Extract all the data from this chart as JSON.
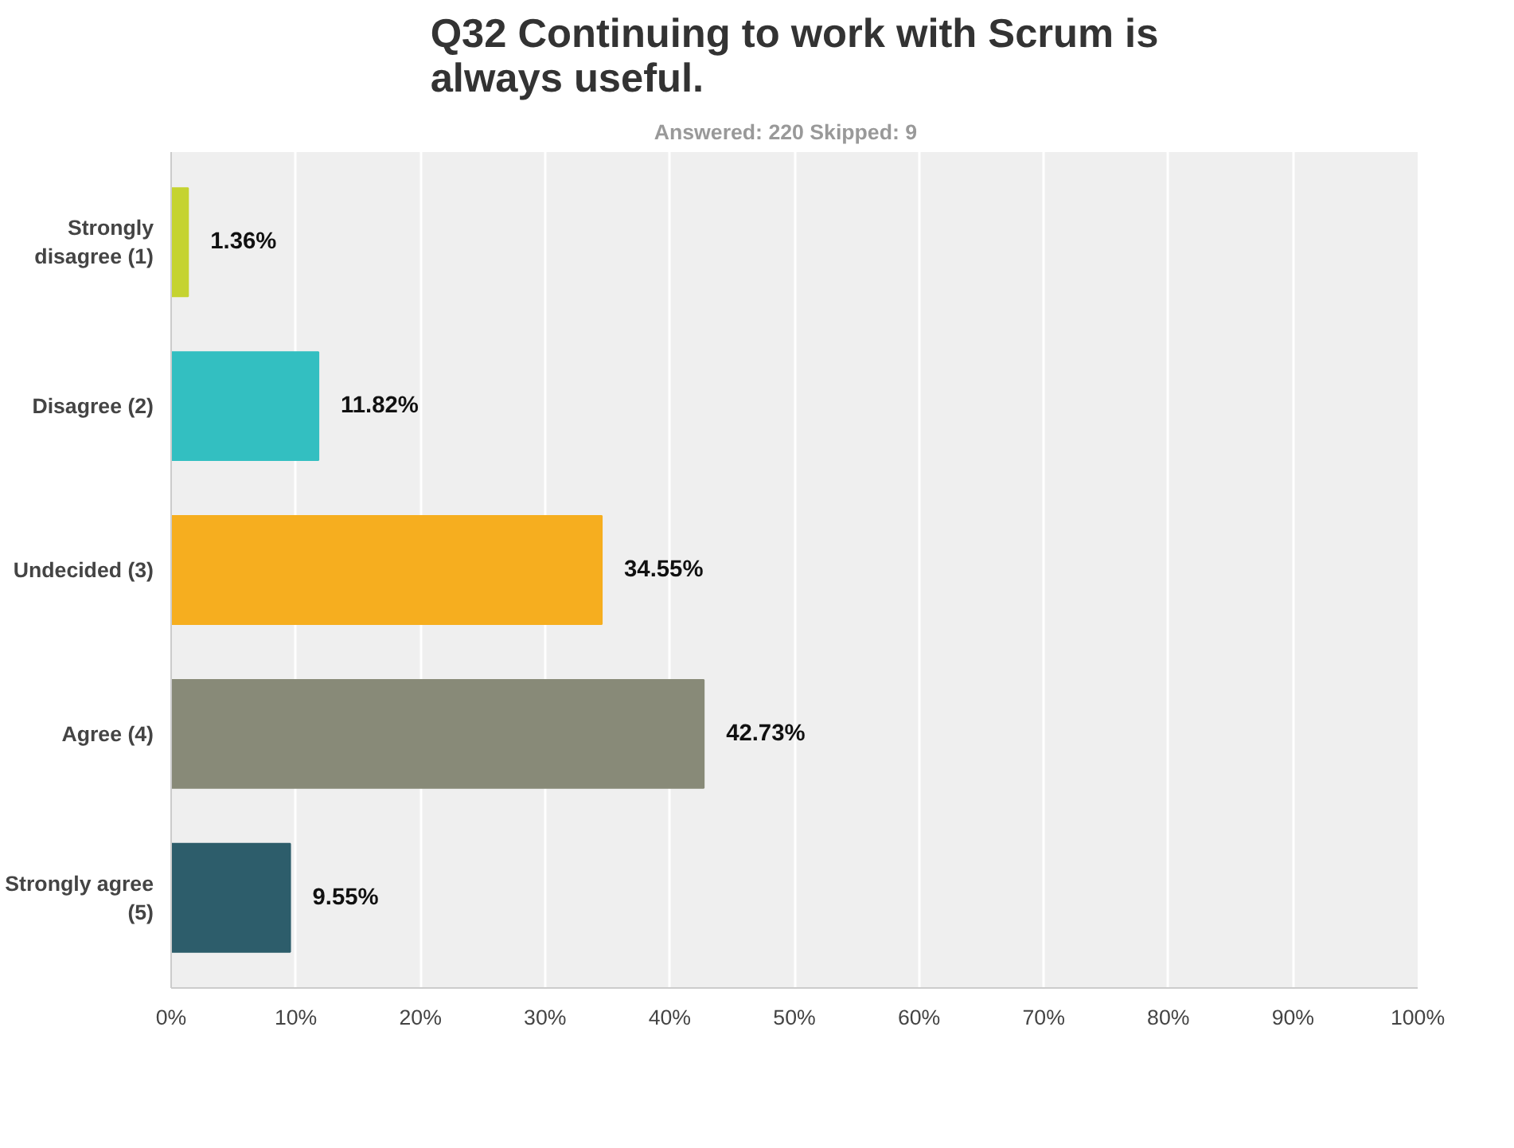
{
  "chart_data": {
    "type": "bar",
    "orientation": "horizontal",
    "title": "Q32 Continuing to work with Scrum is always useful.",
    "subtitle": "Answered: 220    Skipped: 9",
    "categories": [
      "Strongly disagree (1)",
      "Disagree (2)",
      "Undecided (3)",
      "Agree (4)",
      "Strongly agree (5)"
    ],
    "values": [
      1.36,
      11.82,
      34.55,
      42.73,
      9.55
    ],
    "colors": [
      "#c5d330",
      "#33bfc1",
      "#f6ae1f",
      "#888a78",
      "#2d5d6b"
    ],
    "value_labels": [
      "1.36%",
      "11.82%",
      "34.55%",
      "42.73%",
      "9.55%"
    ],
    "xlim": [
      0,
      100
    ],
    "xticks": [
      {
        "value": 0,
        "label": "0%"
      },
      {
        "value": 10,
        "label": "10%"
      },
      {
        "value": 20,
        "label": "20%"
      },
      {
        "value": 30,
        "label": "30%"
      },
      {
        "value": 40,
        "label": "40%"
      },
      {
        "value": 50,
        "label": "50%"
      },
      {
        "value": 60,
        "label": "60%"
      },
      {
        "value": 70,
        "label": "70%"
      },
      {
        "value": 80,
        "label": "80%"
      },
      {
        "value": 90,
        "label": "90%"
      },
      {
        "value": 100,
        "label": "100%"
      }
    ],
    "grid": "x"
  }
}
